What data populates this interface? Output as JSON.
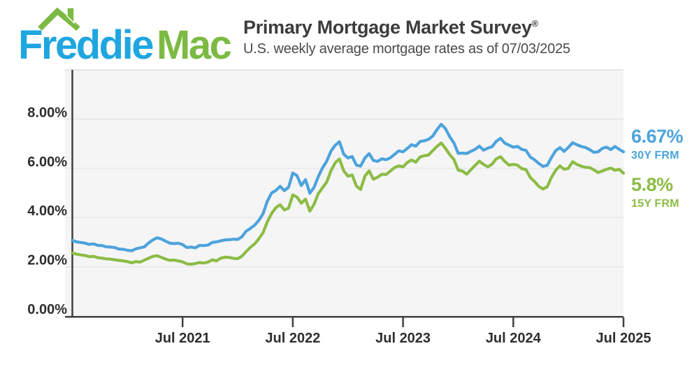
{
  "logo": {
    "first": "Freddie",
    "second": "Mac"
  },
  "header": {
    "title": "Primary Mortgage Market Survey",
    "registered": "®",
    "subtitle": "U.S. weekly average mortgage rates as of 07/03/2025"
  },
  "colors": {
    "blue": "#4DA3DC",
    "green": "#8CBC45",
    "logo_blue": "#1FA6E0",
    "logo_green": "#7CBA43",
    "title": "#3C3C3C",
    "subtitle": "#4A4A4A",
    "axis_line": "#404040",
    "tick_label": "#2E2E2E",
    "plot_bg": "#F5F5F6",
    "gridline": "#E4E4E6",
    "plot_top_border": "#DEDEDE"
  },
  "callouts": {
    "thirty": {
      "value": "6.67%",
      "label": "30Y FRM"
    },
    "fifteen": {
      "value": "5.8%",
      "label": "15Y FRM"
    }
  },
  "chart_data": {
    "type": "line",
    "title": "Primary Mortgage Market Survey",
    "subtitle": "U.S. weekly average mortgage rates as of 07/03/2025",
    "ylabel": "",
    "xlabel": "",
    "ylim": [
      0,
      10
    ],
    "grid": true,
    "legend_position": "right-of-plot",
    "y_ticks": [
      {
        "value": 0,
        "label": "0.00%"
      },
      {
        "value": 2,
        "label": "2.00%"
      },
      {
        "value": 4,
        "label": "4.00%"
      },
      {
        "value": 6,
        "label": "6.00%"
      },
      {
        "value": 8,
        "label": "8.00%"
      }
    ],
    "x_tick_labels": [
      "Jul 2021",
      "Jul 2022",
      "Jul 2023",
      "Jul 2024",
      "Jul 2025"
    ],
    "x_span_years": 5,
    "series": [
      {
        "name": "30Y FRM",
        "color_key": "blue",
        "latest_label": "6.67%",
        "values": [
          3.07,
          3.01,
          2.99,
          2.96,
          2.91,
          2.93,
          2.87,
          2.86,
          2.81,
          2.8,
          2.78,
          2.72,
          2.71,
          2.67,
          2.65,
          2.73,
          2.77,
          2.81,
          2.97,
          3.09,
          3.18,
          3.13,
          3.04,
          2.96,
          2.94,
          2.96,
          2.9,
          2.78,
          2.8,
          2.77,
          2.87,
          2.86,
          2.88,
          2.99,
          3.01,
          3.05,
          3.09,
          3.1,
          3.12,
          3.11,
          3.22,
          3.45,
          3.56,
          3.69,
          3.89,
          4.16,
          4.67,
          5.0,
          5.1,
          5.27,
          5.09,
          5.23,
          5.81,
          5.7,
          5.3,
          5.54,
          4.99,
          5.22,
          5.66,
          6.02,
          6.29,
          6.7,
          6.94,
          7.08,
          6.58,
          6.42,
          6.48,
          6.13,
          6.09,
          6.42,
          6.6,
          6.32,
          6.28,
          6.39,
          6.35,
          6.43,
          6.57,
          6.71,
          6.67,
          6.81,
          6.96,
          6.9,
          7.09,
          7.12,
          7.18,
          7.31,
          7.57,
          7.79,
          7.61,
          7.29,
          7.03,
          6.61,
          6.62,
          6.6,
          6.69,
          6.77,
          6.9,
          6.74,
          6.82,
          6.88,
          7.1,
          7.22,
          7.02,
          6.94,
          6.86,
          6.89,
          6.77,
          6.73,
          6.46,
          6.35,
          6.2,
          6.08,
          6.12,
          6.44,
          6.72,
          6.84,
          6.69,
          6.85,
          7.04,
          6.96,
          6.89,
          6.85,
          6.76,
          6.65,
          6.67,
          6.81,
          6.86,
          6.76,
          6.89,
          6.77,
          6.67
        ]
      },
      {
        "name": "15Y FRM",
        "color_key": "green",
        "latest_label": "5.8%",
        "values": [
          2.56,
          2.51,
          2.48,
          2.46,
          2.41,
          2.42,
          2.37,
          2.35,
          2.32,
          2.31,
          2.28,
          2.26,
          2.24,
          2.21,
          2.16,
          2.21,
          2.19,
          2.27,
          2.35,
          2.42,
          2.45,
          2.38,
          2.31,
          2.26,
          2.27,
          2.24,
          2.2,
          2.12,
          2.1,
          2.13,
          2.17,
          2.15,
          2.19,
          2.28,
          2.24,
          2.35,
          2.39,
          2.38,
          2.34,
          2.33,
          2.43,
          2.62,
          2.79,
          2.93,
          3.14,
          3.39,
          3.83,
          4.17,
          4.4,
          4.52,
          4.31,
          4.38,
          4.92,
          4.83,
          4.58,
          4.75,
          4.26,
          4.53,
          4.97,
          5.21,
          5.44,
          5.9,
          6.23,
          6.38,
          5.9,
          5.68,
          5.73,
          5.28,
          5.14,
          5.68,
          5.9,
          5.56,
          5.64,
          5.76,
          5.75,
          5.89,
          6.03,
          6.1,
          6.06,
          6.24,
          6.34,
          6.25,
          6.46,
          6.51,
          6.54,
          6.72,
          6.89,
          7.03,
          6.81,
          6.56,
          6.36,
          5.93,
          5.89,
          5.76,
          5.94,
          6.12,
          6.29,
          6.16,
          6.06,
          6.17,
          6.39,
          6.47,
          6.28,
          6.13,
          6.16,
          6.13,
          5.99,
          5.95,
          5.63,
          5.47,
          5.27,
          5.16,
          5.25,
          5.63,
          5.92,
          6.1,
          5.96,
          6.0,
          6.27,
          6.16,
          6.09,
          6.04,
          6.03,
          5.94,
          5.83,
          5.89,
          5.96,
          6.01,
          5.92,
          5.96,
          5.8
        ]
      }
    ]
  }
}
